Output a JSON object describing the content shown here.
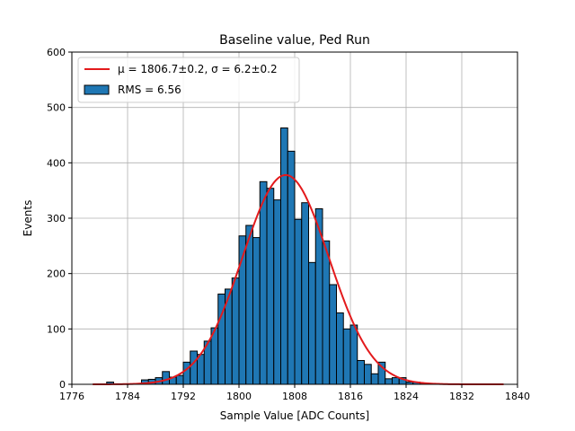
{
  "chart_data": {
    "type": "bar",
    "title": "Baseline value, Ped Run",
    "xlabel": "Sample Value [ADC Counts]",
    "ylabel": "Events",
    "xlim": [
      1776,
      1840
    ],
    "ylim": [
      0,
      600
    ],
    "xticks": [
      1776,
      1784,
      1792,
      1800,
      1808,
      1816,
      1824,
      1832,
      1840
    ],
    "yticks": [
      0,
      100,
      200,
      300,
      400,
      500,
      600
    ],
    "grid": true,
    "legend_position": "top-left",
    "histogram": {
      "name": "RMS = 6.56",
      "color": "#1f77b4",
      "bin_width": 1,
      "bin_starts": [
        1781,
        1786,
        1787,
        1788,
        1789,
        1790,
        1791,
        1792,
        1793,
        1794,
        1795,
        1796,
        1797,
        1798,
        1799,
        1800,
        1801,
        1802,
        1803,
        1804,
        1805,
        1806,
        1807,
        1808,
        1809,
        1810,
        1811,
        1812,
        1813,
        1814,
        1815,
        1816,
        1817,
        1818,
        1819,
        1820,
        1821,
        1822,
        1823,
        1824,
        1825,
        1826
      ],
      "counts": [
        4,
        8,
        9,
        12,
        23,
        13,
        16,
        40,
        60,
        54,
        78,
        102,
        163,
        172,
        192,
        268,
        287,
        265,
        366,
        354,
        333,
        463,
        421,
        298,
        328,
        220,
        317,
        259,
        180,
        129,
        100,
        107,
        43,
        36,
        19,
        40,
        10,
        12,
        12,
        4,
        4,
        2
      ]
    },
    "fit": {
      "name_prefix": "μ = 1806.7±0.2, σ = 6.2±0.2",
      "color": "#e31a1c",
      "mu": 1806.7,
      "sigma": 6.2,
      "amplitude": 378,
      "x_range": [
        1779,
        1838
      ]
    }
  },
  "text": {
    "title": "Baseline value, Ped Run",
    "xlabel": "Sample Value [ADC Counts]",
    "ylabel": "Events",
    "legend_fit": "μ = 1806.7±0.2, σ = 6.2±0.2",
    "legend_hist": "RMS = 6.56"
  }
}
